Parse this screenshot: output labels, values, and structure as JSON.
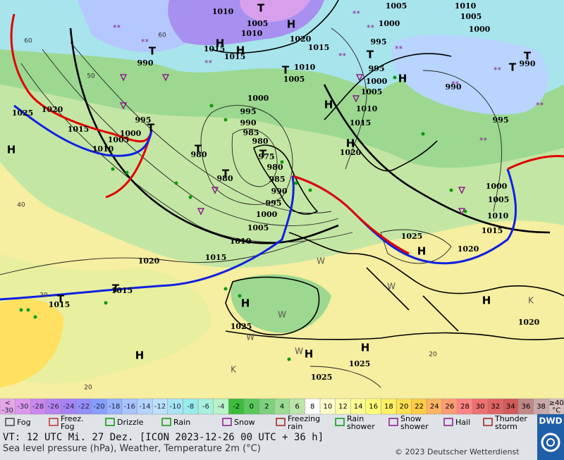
{
  "map": {
    "isobar_labels": [
      "1010",
      "1005",
      "1010",
      "1020",
      "1015",
      "1015",
      "1015",
      "990",
      "1010",
      "1005",
      "1000",
      "995",
      "990",
      "985",
      "980",
      "980",
      "975",
      "980",
      "985",
      "990",
      "995",
      "1000",
      "1005",
      "1010",
      "1015",
      "1020",
      "1015",
      "1025",
      "1020",
      "1015",
      "1010",
      "1005",
      "1000",
      "995",
      "980",
      "1005",
      "1000",
      "995",
      "995",
      "1000",
      "1005",
      "1010",
      "1015",
      "1020",
      "1010",
      "1005",
      "1000",
      "990",
      "990",
      "995",
      "1000",
      "1005",
      "1010",
      "1015",
      "1020",
      "1025",
      "1025",
      "1025",
      "1025",
      "1020",
      "1015"
    ],
    "centers": [
      "T",
      "H",
      "T",
      "H",
      "H",
      "T",
      "T",
      "T",
      "T",
      "H",
      "H",
      "H",
      "T",
      "T",
      "T",
      "T",
      "H",
      "H",
      "H",
      "T",
      "T",
      "H",
      "H",
      "H",
      "H",
      "K",
      "K",
      "W",
      "W",
      "W",
      "W",
      "W"
    ],
    "grid_labels": [
      "60",
      "60",
      "50",
      "40",
      "30",
      "20",
      "20"
    ]
  },
  "temperature_scale": {
    "labels": [
      "<\n-30",
      "-30",
      "-28",
      "-26",
      "-24",
      "-22",
      "-20",
      "-18",
      "-16",
      "-14",
      "-12",
      "-10",
      "-8",
      "-6",
      "-4",
      "-2",
      "0",
      "2",
      "4",
      "6",
      "8",
      "10",
      "12",
      "14",
      "16",
      "18",
      "20",
      "22",
      "24",
      "26",
      "28",
      "30",
      "32",
      "34",
      "36",
      "38",
      "≥40\n°C"
    ],
    "colors": [
      "#e4a8e8",
      "#dc98ec",
      "#cc88ec",
      "#b884f0",
      "#a684f6",
      "#9490fa",
      "#86a0ff",
      "#98b4ff",
      "#a8c4ff",
      "#b4d4ff",
      "#bce2ff",
      "#a8e4f4",
      "#98ecec",
      "#a8f0dc",
      "#b8f4c8",
      "#3cbc3c",
      "#5cc85c",
      "#7cd27c",
      "#9cdc94",
      "#bce4a8",
      "#ffffff",
      "#ffffcc",
      "#ffffb0",
      "#ffff94",
      "#ffff78",
      "#fff064",
      "#ffe050",
      "#ffcc48",
      "#ffb464",
      "#ff9c74",
      "#ff8484",
      "#f07070",
      "#e06464",
      "#d25a5a",
      "#c08888",
      "#c8a8a8",
      "#d8c0c0"
    ]
  },
  "weather_legend": [
    "Fog",
    "Freez. Fog",
    "Drizzle",
    "Rain",
    "Snow",
    "Freezing rain",
    "Rain shower",
    "Snow shower",
    "Hail",
    "Thunder storm"
  ],
  "info": {
    "line1": "VT: 12 UTC Mi.  27 Dez. [ICON 2023-12-26  00 UTC + 36 h]",
    "line2": "Sea level pressure (hPa), Weather, Temperature 2m (°C)",
    "copyright": "© 2023 Deutscher Wetterdienst",
    "logo": "DWD"
  }
}
